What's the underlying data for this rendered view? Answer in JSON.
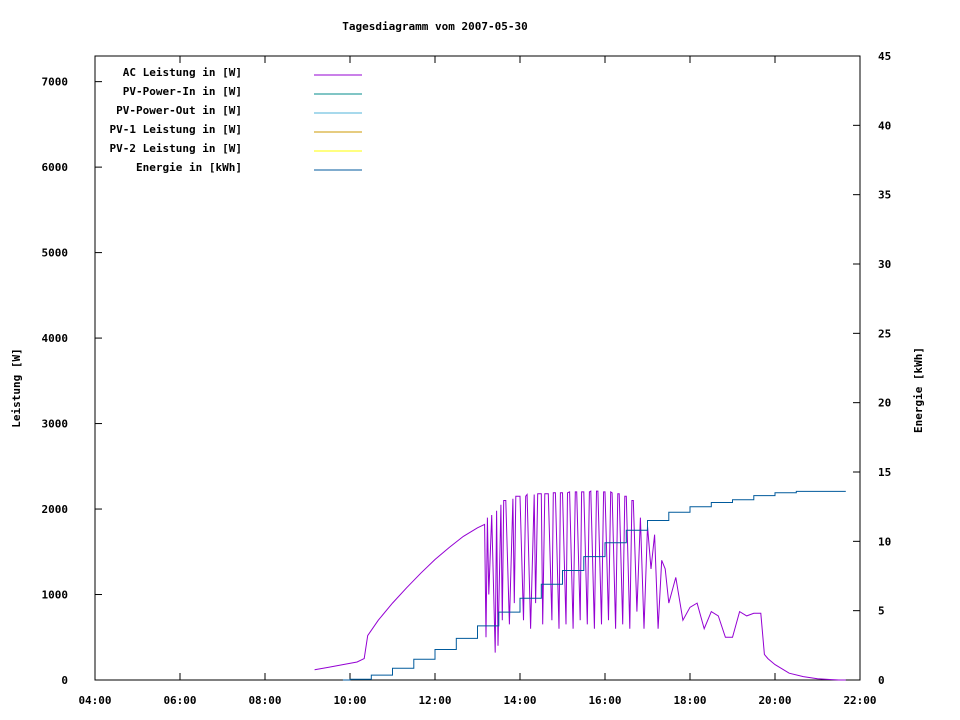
{
  "chart_data": {
    "type": "line",
    "title": "Tagesdiagramm vom 2007-05-30",
    "ylabel": "Leistung [W]",
    "y2label": "Energie [kWh]",
    "xlim": [
      "04:00",
      "22:00"
    ],
    "ylim": [
      0,
      7300
    ],
    "y2lim": [
      0,
      45
    ],
    "xticks": [
      "04:00",
      "06:00",
      "08:00",
      "10:00",
      "12:00",
      "14:00",
      "16:00",
      "18:00",
      "20:00",
      "22:00"
    ],
    "yticks": [
      0,
      1000,
      2000,
      3000,
      4000,
      5000,
      6000,
      7000
    ],
    "y2ticks": [
      0,
      5,
      10,
      15,
      20,
      25,
      30,
      35,
      40,
      45
    ],
    "grid": false,
    "legend_position": "top-left",
    "series": [
      {
        "name": "AC Leistung in [W]",
        "color": "#9400d3",
        "axis": "left",
        "x": [
          "09:10",
          "09:30",
          "09:50",
          "10:10",
          "10:20",
          "10:25",
          "10:40",
          "11:00",
          "11:20",
          "11:40",
          "12:00",
          "12:20",
          "12:40",
          "13:00",
          "13:10",
          "13:12",
          "13:14",
          "13:16",
          "13:20",
          "13:25",
          "13:27",
          "13:29",
          "13:33",
          "13:35",
          "13:37",
          "13:40",
          "13:45",
          "13:50",
          "13:52",
          "13:54",
          "14:00",
          "14:05",
          "14:08",
          "14:10",
          "14:15",
          "14:20",
          "14:22",
          "14:25",
          "14:30",
          "14:32",
          "14:35",
          "14:40",
          "14:45",
          "14:47",
          "14:50",
          "14:55",
          "14:57",
          "15:00",
          "15:05",
          "15:07",
          "15:10",
          "15:15",
          "15:18",
          "15:20",
          "15:25",
          "15:27",
          "15:30",
          "15:35",
          "15:38",
          "15:40",
          "15:45",
          "15:48",
          "15:50",
          "15:55",
          "15:58",
          "16:00",
          "16:05",
          "16:08",
          "16:10",
          "16:15",
          "16:18",
          "16:20",
          "16:25",
          "16:28",
          "16:30",
          "16:35",
          "16:38",
          "16:40",
          "16:45",
          "16:50",
          "16:55",
          "17:00",
          "17:05",
          "17:10",
          "17:15",
          "17:20",
          "17:25",
          "17:30",
          "17:40",
          "17:50",
          "18:00",
          "18:10",
          "18:20",
          "18:30",
          "18:40",
          "18:50",
          "19:00",
          "19:10",
          "19:20",
          "19:30",
          "19:40",
          "19:45",
          "19:50",
          "20:00",
          "20:20",
          "20:40",
          "21:00",
          "21:20",
          "21:30",
          "21:40"
        ],
        "y": [
          120,
          150,
          180,
          210,
          250,
          520,
          700,
          900,
          1080,
          1250,
          1410,
          1550,
          1680,
          1780,
          1820,
          500,
          1900,
          1000,
          1930,
          320,
          1980,
          400,
          2050,
          700,
          2100,
          2100,
          650,
          2120,
          900,
          2150,
          2150,
          700,
          2150,
          2170,
          600,
          2170,
          900,
          2180,
          2180,
          650,
          2180,
          2180,
          700,
          2190,
          2190,
          600,
          2190,
          2190,
          650,
          2190,
          2200,
          600,
          2200,
          2200,
          700,
          2200,
          2200,
          650,
          2200,
          2210,
          600,
          2210,
          2210,
          650,
          2200,
          2200,
          700,
          2200,
          2190,
          600,
          2180,
          2180,
          650,
          2150,
          2150,
          600,
          2100,
          2100,
          800,
          1900,
          600,
          1800,
          1300,
          1700,
          600,
          1400,
          1300,
          900,
          1200,
          700,
          850,
          900,
          600,
          800,
          750,
          500,
          500,
          800,
          750,
          780,
          780,
          300,
          250,
          180,
          80,
          40,
          15,
          5,
          0,
          0
        ]
      },
      {
        "name": "PV-Power-In in [W]",
        "color": "#008b8b",
        "axis": "left",
        "x": [],
        "y": []
      },
      {
        "name": "PV-Power-Out in [W]",
        "color": "#4fb3d9",
        "axis": "left",
        "x": [],
        "y": []
      },
      {
        "name": "PV-1 Leistung in [W]",
        "color": "#cc9900",
        "axis": "left",
        "x": [],
        "y": []
      },
      {
        "name": "PV-2 Leistung in [W]",
        "color": "#ffff00",
        "axis": "left",
        "x": [],
        "y": []
      },
      {
        "name": "Energie in [kWh]",
        "color": "#005a9c",
        "axis": "right",
        "x": [
          "09:50",
          "10:00",
          "10:30",
          "11:00",
          "11:30",
          "12:00",
          "12:30",
          "13:00",
          "13:30",
          "14:00",
          "14:30",
          "15:00",
          "15:30",
          "16:00",
          "16:30",
          "17:00",
          "17:30",
          "18:00",
          "18:30",
          "19:00",
          "19:30",
          "20:00",
          "20:30",
          "21:00",
          "21:40"
        ],
        "y": [
          0,
          0.05,
          0.35,
          0.85,
          1.5,
          2.2,
          3.0,
          3.9,
          4.9,
          5.9,
          6.9,
          7.9,
          8.9,
          9.9,
          10.8,
          11.5,
          12.1,
          12.5,
          12.8,
          13.0,
          13.3,
          13.5,
          13.6,
          13.6,
          13.6
        ]
      }
    ]
  }
}
